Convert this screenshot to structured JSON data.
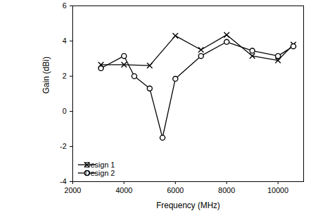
{
  "chart_data": {
    "type": "line",
    "x_label": "Frequency (MHz)",
    "y_label": "Gain (dBi)",
    "xlim": [
      2000,
      11000
    ],
    "xticks": [
      2000,
      4000,
      6000,
      8000,
      10000
    ],
    "ylim": [
      -4,
      6
    ],
    "yticks": [
      -4,
      -2,
      0,
      2,
      4,
      6
    ],
    "grid": false,
    "legend": "lower left",
    "series": [
      {
        "name": "Design 1",
        "color": "#000000",
        "marker": "x",
        "line_style": "solid",
        "x": [
          3100,
          4000,
          5000,
          6000,
          7000,
          8000,
          9000,
          10000,
          10600
        ],
        "values": [
          2.65,
          2.65,
          2.6,
          4.3,
          3.5,
          4.35,
          3.15,
          2.9,
          3.8
        ]
      },
      {
        "name": "Design 2",
        "color": "#000000",
        "marker": "circle",
        "line_style": "solid",
        "x": [
          3100,
          4000,
          4400,
          5000,
          5500,
          6000,
          7000,
          8000,
          9000,
          10000,
          10600
        ],
        "values": [
          2.45,
          3.15,
          2.0,
          1.3,
          -1.5,
          1.85,
          3.15,
          3.95,
          3.45,
          3.15,
          3.7
        ]
      }
    ]
  }
}
